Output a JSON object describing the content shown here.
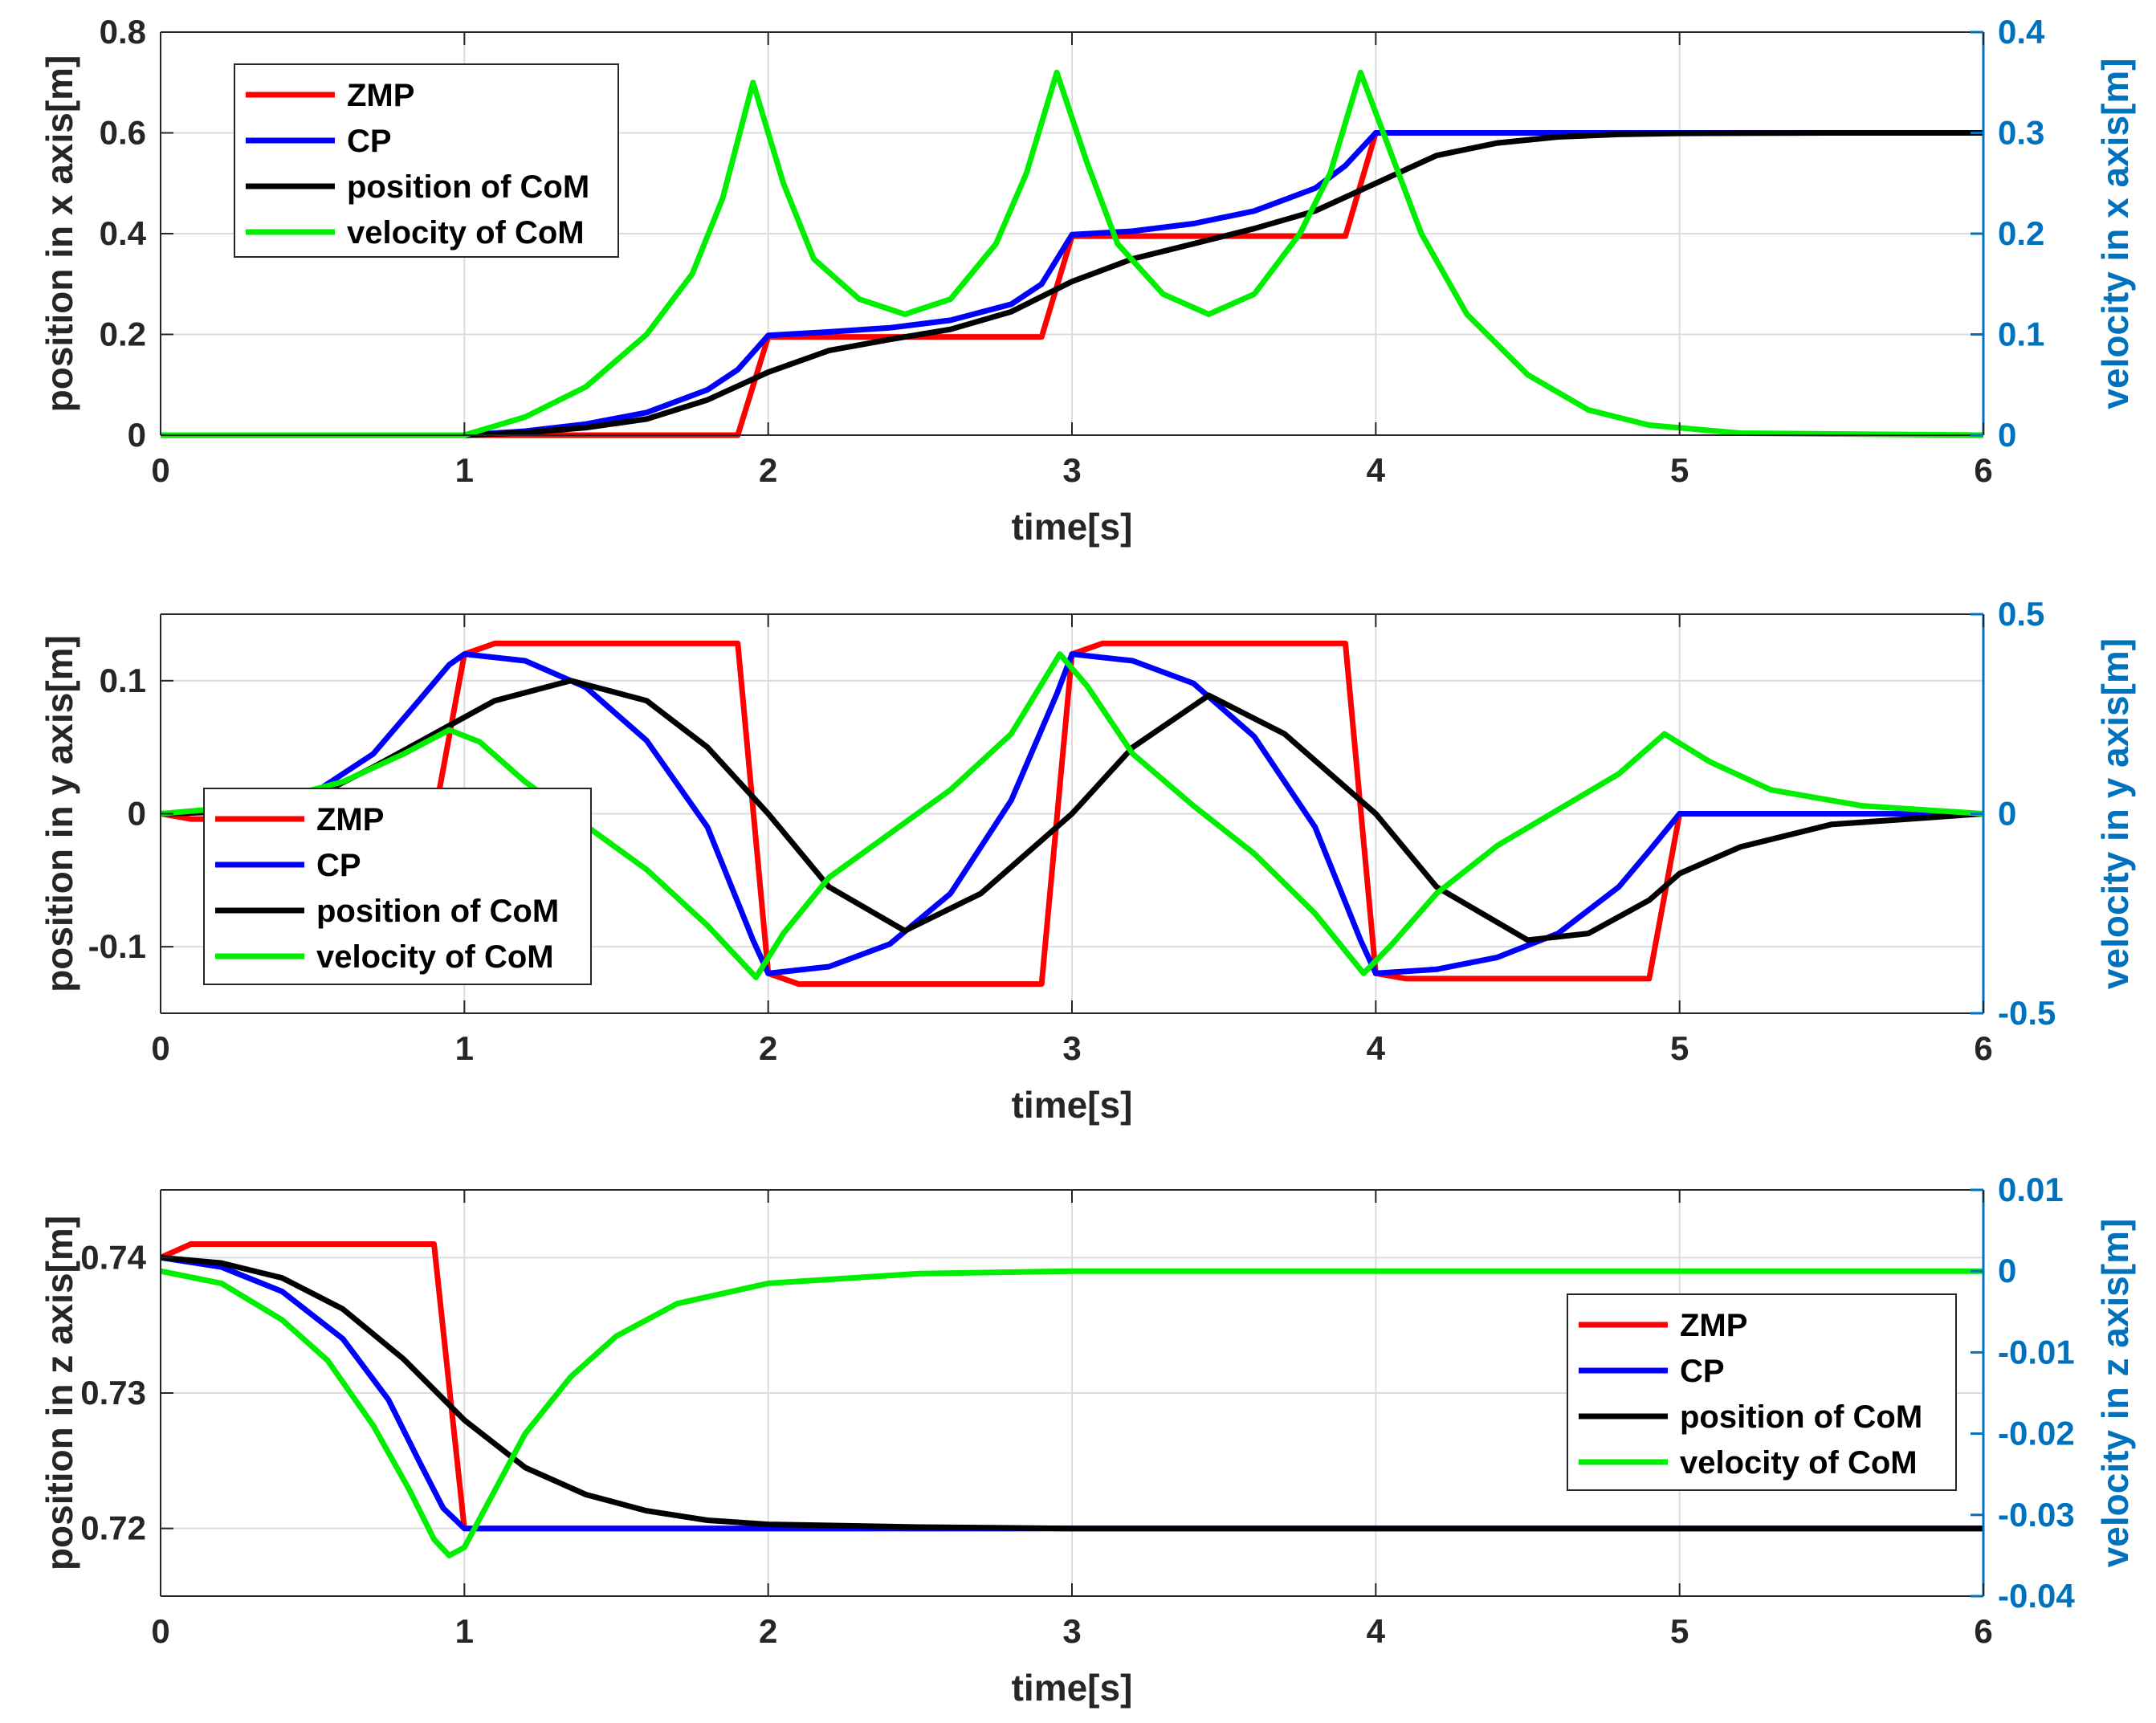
{
  "chart_data": [
    {
      "type": "line",
      "xlabel": "time[s]",
      "ylabel": "position in x axis[m]",
      "ylabel_right": "velocity in x axis[m]",
      "xlim": [
        0,
        6
      ],
      "ylim": [
        0,
        0.8
      ],
      "ylim_right": [
        0,
        0.4
      ],
      "xticks": [
        0,
        1,
        2,
        3,
        4,
        5,
        6
      ],
      "xtick_labels": [
        "0",
        "1",
        "2",
        "3",
        "4",
        "5",
        "6"
      ],
      "yticks": [
        0,
        0.2,
        0.4,
        0.6,
        0.8
      ],
      "ytick_labels": [
        "0",
        "0.2",
        "0.4",
        "0.6",
        "0.8"
      ],
      "yticks_right": [
        0,
        0.1,
        0.2,
        0.3,
        0.4
      ],
      "ytick_labels_right": [
        "0",
        "0.1",
        "0.2",
        "0.3",
        "0.4"
      ],
      "grid": true,
      "legend_position": "top-left",
      "series": [
        {
          "name": "ZMP",
          "color": "#ff0000",
          "axis": "left",
          "x": [
            0,
            1.9,
            2.0,
            2.9,
            3.0,
            3.9,
            4.0,
            6.0
          ],
          "y": [
            0,
            0,
            0.195,
            0.195,
            0.395,
            0.395,
            0.6,
            0.6
          ]
        },
        {
          "name": "CP",
          "color": "#0000ff",
          "axis": "left",
          "x": [
            0,
            1.0,
            1.2,
            1.4,
            1.6,
            1.8,
            1.9,
            2.0,
            2.2,
            2.4,
            2.6,
            2.8,
            2.9,
            3.0,
            3.2,
            3.4,
            3.6,
            3.8,
            3.9,
            4.0,
            6.0
          ],
          "y": [
            0,
            0,
            0.008,
            0.022,
            0.045,
            0.09,
            0.13,
            0.198,
            0.205,
            0.213,
            0.228,
            0.26,
            0.3,
            0.398,
            0.405,
            0.42,
            0.445,
            0.49,
            0.535,
            0.6,
            0.6
          ]
        },
        {
          "name": "position of CoM",
          "color": "#000000",
          "axis": "left",
          "x": [
            0,
            1.0,
            1.2,
            1.4,
            1.6,
            1.8,
            2.0,
            2.2,
            2.4,
            2.6,
            2.8,
            3.0,
            3.2,
            3.4,
            3.6,
            3.8,
            4.0,
            4.2,
            4.4,
            4.6,
            4.8,
            5.0,
            5.5,
            6.0
          ],
          "y": [
            0,
            0,
            0.005,
            0.015,
            0.032,
            0.07,
            0.125,
            0.168,
            0.19,
            0.21,
            0.245,
            0.305,
            0.35,
            0.38,
            0.41,
            0.445,
            0.5,
            0.555,
            0.58,
            0.592,
            0.597,
            0.599,
            0.6,
            0.6
          ]
        },
        {
          "name": "velocity of CoM",
          "color": "#00ee00",
          "axis": "right",
          "x": [
            0,
            1.0,
            1.2,
            1.4,
            1.6,
            1.75,
            1.85,
            1.95,
            2.05,
            2.15,
            2.3,
            2.45,
            2.6,
            2.75,
            2.85,
            2.95,
            3.05,
            3.15,
            3.3,
            3.45,
            3.6,
            3.75,
            3.85,
            3.95,
            4.05,
            4.15,
            4.3,
            4.5,
            4.7,
            4.9,
            5.2,
            6.0
          ],
          "y": [
            0,
            0,
            0.018,
            0.048,
            0.1,
            0.16,
            0.235,
            0.35,
            0.25,
            0.175,
            0.135,
            0.12,
            0.135,
            0.19,
            0.26,
            0.36,
            0.27,
            0.19,
            0.14,
            0.12,
            0.14,
            0.2,
            0.26,
            0.36,
            0.28,
            0.2,
            0.12,
            0.06,
            0.025,
            0.01,
            0.002,
            0
          ]
        }
      ]
    },
    {
      "type": "line",
      "xlabel": "time[s]",
      "ylabel": "position in y axis[m]",
      "ylabel_right": "velocity in y axis[m]",
      "xlim": [
        0,
        6
      ],
      "ylim": [
        -0.15,
        0.15
      ],
      "ylim_right": [
        -0.5,
        0.5
      ],
      "xticks": [
        0,
        1,
        2,
        3,
        4,
        5,
        6
      ],
      "xtick_labels": [
        "0",
        "1",
        "2",
        "3",
        "4",
        "5",
        "6"
      ],
      "yticks": [
        -0.1,
        0,
        0.1
      ],
      "ytick_labels": [
        "-0.1",
        "0",
        "0.1"
      ],
      "yticks_right": [
        -0.5,
        0,
        0.5
      ],
      "ytick_labels_right": [
        "-0.5",
        "0",
        "0.5"
      ],
      "grid": true,
      "legend_position": "center-left",
      "series": [
        {
          "name": "ZMP",
          "color": "#ff0000",
          "axis": "left",
          "x": [
            0,
            0.1,
            0.9,
            1.0,
            1.1,
            1.9,
            2.0,
            2.1,
            2.9,
            3.0,
            3.1,
            3.9,
            4.0,
            4.1,
            4.9,
            5.0,
            6.0
          ],
          "y": [
            0,
            -0.004,
            -0.004,
            0.12,
            0.128,
            0.128,
            -0.12,
            -0.128,
            -0.128,
            0.12,
            0.128,
            0.128,
            -0.12,
            -0.124,
            -0.124,
            0,
            0
          ]
        },
        {
          "name": "CP",
          "color": "#0000ff",
          "axis": "left",
          "x": [
            0,
            0.3,
            0.5,
            0.7,
            0.85,
            0.95,
            1.0,
            1.2,
            1.4,
            1.6,
            1.8,
            1.95,
            2.0,
            2.2,
            2.4,
            2.6,
            2.8,
            2.95,
            3.0,
            3.2,
            3.4,
            3.6,
            3.8,
            3.95,
            4.0,
            4.2,
            4.4,
            4.6,
            4.8,
            4.9,
            5.0,
            6.0
          ],
          "y": [
            0,
            0.002,
            0.015,
            0.045,
            0.085,
            0.112,
            0.12,
            0.115,
            0.095,
            0.055,
            -0.01,
            -0.095,
            -0.12,
            -0.115,
            -0.098,
            -0.06,
            0.01,
            0.09,
            0.12,
            0.115,
            0.098,
            0.058,
            -0.01,
            -0.095,
            -0.12,
            -0.117,
            -0.108,
            -0.09,
            -0.055,
            -0.028,
            0,
            0
          ]
        },
        {
          "name": "position of CoM",
          "color": "#000000",
          "axis": "left",
          "x": [
            0,
            0.3,
            0.5,
            0.7,
            0.9,
            1.1,
            1.35,
            1.6,
            1.8,
            2.0,
            2.2,
            2.45,
            2.7,
            2.9,
            3.0,
            3.2,
            3.45,
            3.7,
            3.9,
            4.0,
            4.2,
            4.5,
            4.7,
            4.9,
            5.0,
            5.2,
            5.5,
            6.0
          ],
          "y": [
            0,
            0.002,
            0.012,
            0.035,
            0.06,
            0.085,
            0.1,
            0.085,
            0.05,
            0,
            -0.055,
            -0.088,
            -0.06,
            -0.02,
            0,
            0.05,
            0.089,
            0.06,
            0.02,
            0,
            -0.055,
            -0.095,
            -0.09,
            -0.065,
            -0.045,
            -0.025,
            -0.008,
            0
          ]
        },
        {
          "name": "velocity of CoM",
          "color": "#00ee00",
          "axis": "right",
          "x": [
            0,
            0.3,
            0.6,
            0.8,
            0.95,
            1.05,
            1.2,
            1.4,
            1.6,
            1.8,
            1.96,
            2.05,
            2.2,
            2.4,
            2.6,
            2.8,
            2.96,
            3.05,
            3.2,
            3.4,
            3.6,
            3.8,
            3.96,
            4.05,
            4.2,
            4.4,
            4.6,
            4.8,
            4.95,
            5.1,
            5.3,
            5.6,
            6.0
          ],
          "y": [
            0,
            0.02,
            0.08,
            0.15,
            0.21,
            0.18,
            0.08,
            -0.03,
            -0.14,
            -0.28,
            -0.41,
            -0.3,
            -0.16,
            -0.05,
            0.06,
            0.2,
            0.4,
            0.32,
            0.15,
            0.02,
            -0.1,
            -0.25,
            -0.4,
            -0.33,
            -0.2,
            -0.08,
            0.01,
            0.1,
            0.2,
            0.13,
            0.06,
            0.02,
            0
          ]
        }
      ]
    },
    {
      "type": "line",
      "xlabel": "time[s]",
      "ylabel": "position in z axis[m]",
      "ylabel_right": "velocity in z axis[m]",
      "xlim": [
        0,
        6
      ],
      "ylim": [
        0.715,
        0.745
      ],
      "ylim_right": [
        -0.04,
        0.01
      ],
      "xticks": [
        0,
        1,
        2,
        3,
        4,
        5,
        6
      ],
      "xtick_labels": [
        "0",
        "1",
        "2",
        "3",
        "4",
        "5",
        "6"
      ],
      "yticks": [
        0.72,
        0.73,
        0.74
      ],
      "ytick_labels": [
        "0.72",
        "0.73",
        "0.74"
      ],
      "yticks_right": [
        -0.04,
        -0.03,
        -0.02,
        -0.01,
        0,
        0.01
      ],
      "ytick_labels_right": [
        "-0.04",
        "-0.03",
        "-0.02",
        "-0.01",
        "0",
        "0.01"
      ],
      "grid": true,
      "legend_position": "center-right",
      "series": [
        {
          "name": "ZMP",
          "color": "#ff0000",
          "axis": "left",
          "x": [
            0,
            0.1,
            0.9,
            1.0,
            6.0
          ],
          "y": [
            0.74,
            0.741,
            0.741,
            0.72,
            0.72
          ]
        },
        {
          "name": "CP",
          "color": "#0000ff",
          "axis": "left",
          "x": [
            0,
            0.2,
            0.4,
            0.6,
            0.75,
            0.85,
            0.93,
            1.0,
            6.0
          ],
          "y": [
            0.74,
            0.7393,
            0.7375,
            0.734,
            0.7295,
            0.725,
            0.7215,
            0.72,
            0.72
          ]
        },
        {
          "name": "position of CoM",
          "color": "#000000",
          "axis": "left",
          "x": [
            0,
            0.2,
            0.4,
            0.6,
            0.8,
            1.0,
            1.2,
            1.4,
            1.6,
            1.8,
            2.0,
            2.5,
            3.0,
            6.0
          ],
          "y": [
            0.74,
            0.7396,
            0.7385,
            0.7362,
            0.7325,
            0.728,
            0.7245,
            0.7225,
            0.7213,
            0.7206,
            0.7203,
            0.7201,
            0.72,
            0.72
          ]
        },
        {
          "name": "velocity of CoM",
          "color": "#00ee00",
          "axis": "right",
          "x": [
            0,
            0.2,
            0.4,
            0.55,
            0.7,
            0.82,
            0.9,
            0.95,
            1.0,
            1.1,
            1.2,
            1.35,
            1.5,
            1.7,
            2.0,
            2.5,
            3.0,
            6.0
          ],
          "y": [
            0,
            -0.0015,
            -0.006,
            -0.011,
            -0.019,
            -0.027,
            -0.033,
            -0.035,
            -0.034,
            -0.027,
            -0.02,
            -0.013,
            -0.008,
            -0.004,
            -0.0015,
            -0.0003,
            0,
            0
          ]
        }
      ]
    }
  ]
}
